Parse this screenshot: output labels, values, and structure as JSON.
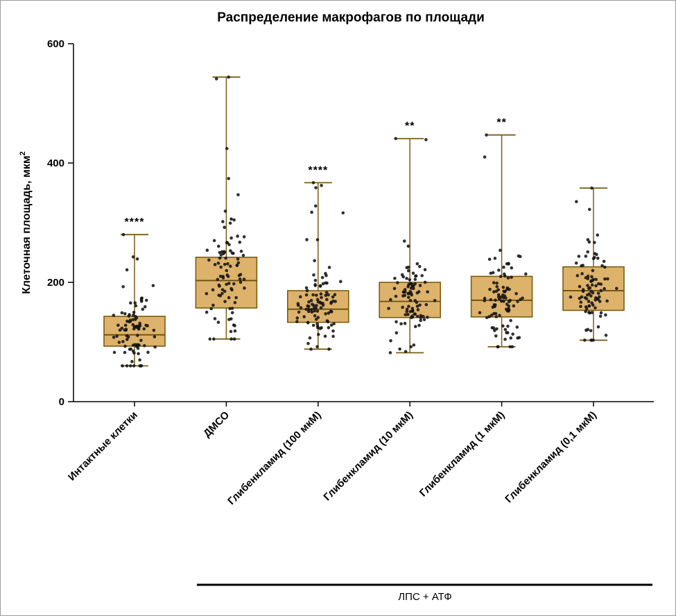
{
  "chart_data": {
    "type": "boxplot-scatter",
    "title": "Распределение макрофагов по площади",
    "ylabel": "Клеточная площадь, мкм²",
    "ylabel_main": "Клеточная площадь, мкм",
    "ylabel_sup": "2",
    "xlabel": "",
    "ylim": [
      0,
      600
    ],
    "y_ticks": [
      0,
      200,
      400,
      600
    ],
    "grid": false,
    "legend": "none",
    "style": {
      "box_fill": "#ddb26b",
      "box_stroke": "#7a5c10",
      "median_stroke": "#6b4f0c",
      "whisker_stroke": "#7a5c10",
      "point_color": "#141414",
      "axis_color": "#000000"
    },
    "bracket": {
      "label": "ЛПС + АТФ",
      "applies_to": [
        "ДМСО",
        "Глибенкламид (100 мкМ)",
        "Глибенкламид (10 мкМ)",
        "Глибенкламид (1 мкМ)",
        "Глибенкламид (0,1 мкМ)"
      ]
    },
    "groups": [
      {
        "label": "Интактные клетки",
        "significance": "****",
        "min": 60,
        "q1": 93,
        "median": 112,
        "q3": 143,
        "max": 280,
        "n_points": 88
      },
      {
        "label": "ДМСО",
        "significance": "",
        "min": 105,
        "q1": 157,
        "median": 203,
        "q3": 242,
        "max": 544,
        "n_points": 92
      },
      {
        "label": "Глибенкламид (100 мкМ)",
        "significance": "****",
        "min": 88,
        "q1": 133,
        "median": 155,
        "q3": 186,
        "max": 367,
        "n_points": 98
      },
      {
        "label": "Глибенкламид (10 мкМ)",
        "significance": "**",
        "min": 82,
        "q1": 141,
        "median": 168,
        "q3": 200,
        "max": 441,
        "n_points": 92
      },
      {
        "label": "Глибенкламид (1 мкМ)",
        "significance": "**",
        "min": 92,
        "q1": 142,
        "median": 170,
        "q3": 210,
        "max": 447,
        "n_points": 96
      },
      {
        "label": "Глибенкламид (0,1 мкМ)",
        "significance": "",
        "min": 103,
        "q1": 153,
        "median": 186,
        "q3": 226,
        "max": 358,
        "n_points": 90
      }
    ]
  }
}
